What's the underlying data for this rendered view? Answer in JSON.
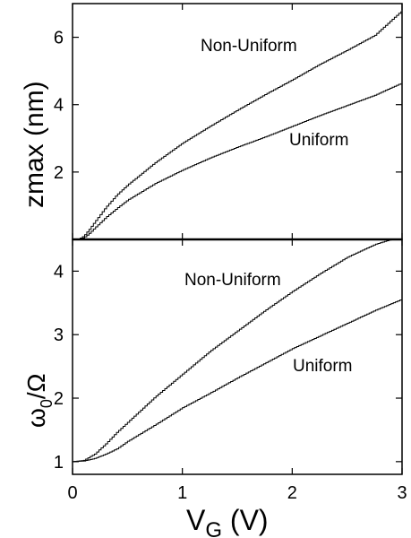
{
  "chart_data": [
    {
      "type": "line",
      "panel": "top",
      "x_range": [
        0,
        3
      ],
      "ylim": [
        0,
        7
      ],
      "y_ticks": [
        2,
        4,
        6
      ],
      "y_tick_labels": [
        "2",
        "4",
        "6"
      ],
      "ylabel": "zmax (nm)",
      "grid": false,
      "series": [
        {
          "name": "Non-Uniform",
          "x": [
            0.05,
            0.1,
            0.15,
            0.2,
            0.3,
            0.4,
            0.5,
            0.75,
            1.0,
            1.25,
            1.5,
            1.75,
            2.0,
            2.25,
            2.5,
            2.75,
            3.0
          ],
          "y": [
            0.0,
            0.1,
            0.3,
            0.52,
            0.95,
            1.32,
            1.62,
            2.28,
            2.86,
            3.36,
            3.84,
            4.3,
            4.74,
            5.2,
            5.62,
            6.06,
            6.8
          ]
        },
        {
          "name": "Uniform",
          "x": [
            0.05,
            0.1,
            0.15,
            0.2,
            0.3,
            0.4,
            0.5,
            0.75,
            1.0,
            1.25,
            1.5,
            1.75,
            2.0,
            2.25,
            2.5,
            2.75,
            3.0
          ],
          "y": [
            0.0,
            0.05,
            0.18,
            0.34,
            0.65,
            0.92,
            1.17,
            1.66,
            2.06,
            2.42,
            2.74,
            3.04,
            3.36,
            3.68,
            3.98,
            4.28,
            4.65
          ]
        }
      ]
    },
    {
      "type": "line",
      "panel": "bottom",
      "xlim": [
        0,
        3
      ],
      "x_ticks": [
        0,
        1,
        2,
        3
      ],
      "x_tick_labels": [
        "0",
        "1",
        "2",
        "3"
      ],
      "ylim": [
        0.8,
        4.5
      ],
      "y_ticks": [
        1,
        2,
        3,
        4
      ],
      "y_tick_labels": [
        "1",
        "2",
        "3",
        "4"
      ],
      "xlabel": "VG (V)",
      "ylabel": "ω0/Ω",
      "grid": false,
      "series": [
        {
          "name": "Non-Uniform",
          "x": [
            0.0,
            0.1,
            0.2,
            0.3,
            0.4,
            0.5,
            0.75,
            1.0,
            1.25,
            1.5,
            1.75,
            2.0,
            2.25,
            2.5,
            2.75,
            2.9
          ],
          "y": [
            1.0,
            1.02,
            1.12,
            1.28,
            1.46,
            1.62,
            2.02,
            2.38,
            2.74,
            3.06,
            3.38,
            3.68,
            3.96,
            4.22,
            4.42,
            4.5
          ]
        },
        {
          "name": "Uniform",
          "x": [
            0.0,
            0.1,
            0.2,
            0.3,
            0.4,
            0.5,
            0.75,
            1.0,
            1.25,
            1.5,
            1.75,
            2.0,
            2.25,
            2.5,
            2.75,
            3.0
          ],
          "y": [
            1.0,
            1.01,
            1.05,
            1.12,
            1.2,
            1.32,
            1.58,
            1.85,
            2.08,
            2.32,
            2.55,
            2.78,
            2.98,
            3.18,
            3.38,
            3.56
          ]
        }
      ]
    }
  ],
  "labels": {
    "top_ylabel_main": "zmax",
    "top_ylabel_unit": " (nm)",
    "bottom_ylabel_omega0_base": "ω",
    "bottom_ylabel_omega0_sub": "0",
    "bottom_ylabel_slash_omega": "/Ω",
    "xlabel_main": "V",
    "xlabel_sub": "G",
    "xlabel_unit": " (V)",
    "annot_top_nonuniform": "Non-Uniform",
    "annot_top_uniform": "Uniform",
    "annot_bottom_nonuniform": "Non-Uniform",
    "annot_bottom_uniform": "Uniform"
  }
}
